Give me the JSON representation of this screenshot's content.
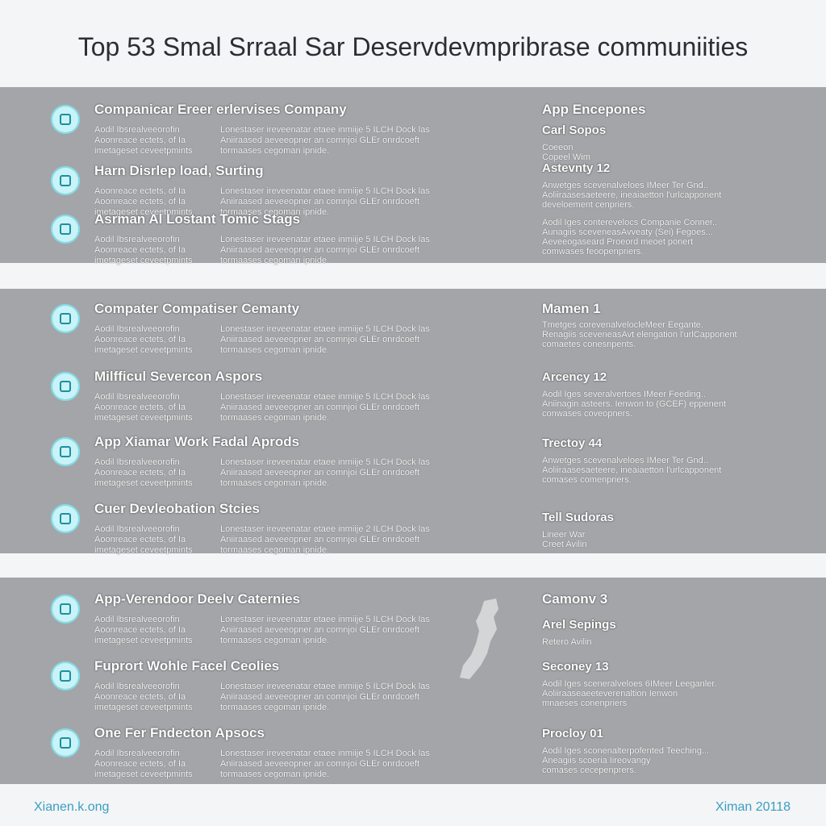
{
  "header": {
    "title": "Top 53 Smal Srraal Sar Deservdevmpribrase communiities"
  },
  "panels": [
    {
      "items": [
        {
          "title": "Companicar Ereer erlervises Company",
          "left": [
            "Aodil Ibsrealveeorofin",
            "Aoonreace ectets, of Ia",
            "imetageset ceveetpmints"
          ],
          "middle": [
            "Lonestaser ireveenatar etaee inmiije 5 ILCH Dock las",
            "Aniiraased aeveeopner an comnjoi GLEr onrdcoeft",
            "tormaases cegoman ipnide."
          ]
        },
        {
          "title": "Harn Disrlep load,  Surting",
          "left": [
            "Aoonreace ectets, of Ia",
            "Aoonreace ectets, of Ia",
            "imetageset ceveetpmints"
          ],
          "middle": [
            "Lonestaser ireveenatar etaee inmiije 5 ILCH Dock las",
            "Aniiraased aeveeopner an comnjoi GLEr onrdcoeft",
            "tormaases cegoman ipnide."
          ]
        },
        {
          "title": "Asrman Al Lostant Tomic Stags",
          "left": [
            "Aodil Ibsrealveeorofin",
            "Aoonreace ectets, of Ia",
            "imetageset ceveetpmints"
          ],
          "middle": [
            "Lonestaser ireveenatar etaee inmiije 5 ILCH Dock las",
            "Aniiraased aeveeopner an comnjoi GLEr onrdcoeft",
            "tormaases cegoman ipnide."
          ]
        }
      ],
      "right": [
        {
          "title": "App Encepones",
          "lines": []
        },
        {
          "title": "Carl Sopos",
          "lines": [
            "Coeeon",
            "Copeel Wim"
          ]
        },
        {
          "title": "Astevnty 12",
          "lines": [
            "Anwetges scevenalveloes IMeer Ter Gnd..",
            "Aoliiraasesaeteere, ineaiaetton l'urlcapponent",
            "develoement cenpriers."
          ]
        },
        {
          "lines": [
            "Aodil Iges conterevelocs Companie Conner..",
            "Aunagiis sceveneasAvveaty (Sei) Fegoes...",
            "Aeveeogaseard Proeord meoet ponert",
            "comwases feoopenpriers."
          ]
        }
      ]
    },
    {
      "items": [
        {
          "title": "Compater Compatiser Cemanty",
          "left": [
            "Aodil Ibsrealveeorofin",
            "Aoonreace ectets, of Ia",
            "imetageset ceveetpmints"
          ],
          "middle": [
            "Lonestaser ireveenatar etaee inmiije 5 ILCH Dock las",
            "Aniiraased aeveeopner an comnjoi GLEr onrdcoeft",
            "tormaases cegoman ipnide."
          ]
        },
        {
          "title": "Milfficul Severcon Aspors",
          "left": [
            "Aodil Ibsrealveeorofin",
            "Aoonreace ectets, of Ia",
            "imetageset ceveetpmints"
          ],
          "middle": [
            "Lonestaser ireveenatar etaee inmiije 5 ILCH Dock las",
            "Aniiraased aeveeopner an comnjoi GLEr onrdcoeft",
            "tormaases cegoman ipnide."
          ]
        },
        {
          "title": "App Xiamar Work Fadal Aprods",
          "left": [
            "Aodil Ibsrealveeorofin",
            "Aoonreace ectets, of Ia",
            "imetageset ceveetpmints"
          ],
          "middle": [
            "Lonestaser ireveenatar etaee inmiije 5 ILCH Dock las",
            "Aniiraased aeveeopner an comnjoi GLEr onrdcoeft",
            "tormaases cegoman ipnide."
          ]
        },
        {
          "title": "Cuer Devleobation Stcies",
          "left": [
            "Aodil Ibsrealveeorofin",
            "Aoonreace ectets, of Ia",
            "imetageset ceveetpmints"
          ],
          "middle": [
            "Lonestaser ireveenatar etaee inmiije 2 ILCH Dock las",
            "Aniiraased aeveeopner an comnjoi GLEr onrdcoeft",
            "tormaases cegoman ipnide."
          ]
        }
      ],
      "right": [
        {
          "title": "Mamen 1",
          "lines": [
            "Tmetges corevenalvelocleMeer Eegante.",
            "Renagiis sceveneasAvt elengation l'urlCapponent",
            "comaetes conesnpents."
          ]
        },
        {
          "title": "Arcency 12",
          "lines": [
            "Aodil Iges severalvertoes IMeer Feeding..",
            "Aniinagin asteers. Ienwon to (GCEF) eppenent",
            "conwases coveopners."
          ]
        },
        {
          "title": "Trectoy 44",
          "lines": [
            "Anwetges scevenalveloes IMeer Ter Gnd..",
            "Aoliiraasesaeteere, ineaiaetton l'urlcapponent",
            "comases comenpriers."
          ]
        },
        {
          "title": "Tell Sudoras",
          "lines": [
            "Lineer War",
            "Creet Avilin"
          ]
        }
      ]
    },
    {
      "items": [
        {
          "title": "App-Verendoor Deelv Caternies",
          "left": [
            "Aodil Ibsrealveeorofin",
            "Aoonreace ectets, of Ia",
            "imetageset ceveetpmints"
          ],
          "middle": [
            "Lonestaser ireveenatar etaee inmiije 5 ILCH Dock las",
            "Aniiraased aeveeopner an comnjoi GLEr onrdcoeft",
            "tormaases cegoman ipnide."
          ]
        },
        {
          "title": "Fuprort Wohle Facel Ceolies",
          "left": [
            "Aodil Ibsrealveeorofin",
            "Aoonreace ectets, of Ia",
            "imetageset ceveetpmints"
          ],
          "middle": [
            "Lonestaser ireveenatar etaee inmiije 5 ILCH Dock las",
            "Aniiraased aeveeopner an comnjoi GLEr onrdcoeft",
            "tormaases cegoman ipnide."
          ]
        },
        {
          "title": "One Fer Fndecton Apsocs",
          "left": [
            "Aodil Ibsrealveeorofin",
            "Aoonreace ectets, of Ia",
            "imetageset ceveetpmints"
          ],
          "middle": [
            "Lonestaser ireveenatar etaee inmiije 5 ILCH Dock las",
            "Aniiraased aeveeopner an comnjoi GLEr onrdcoeft",
            "tormaases cegoman ipnide."
          ]
        }
      ],
      "right": [
        {
          "title": "Camonv 3",
          "lines": []
        },
        {
          "title": "Arel Sepings",
          "lines": [
            "Retero Avilin"
          ]
        },
        {
          "title": "Seconey 13",
          "lines": [
            "Aodil Iges sceneralveloes 6IMeer Leeganler.",
            "Aoliiraaseaeeteverenaltion Ienwon",
            "mnaeses conenpriers"
          ]
        },
        {
          "title": "Procloy 01",
          "lines": [
            "Aodil Iges sconenalterpofented Teeching...",
            "Aneagiis  scoeria Iireovangy",
            "comases cecepenprers."
          ]
        }
      ]
    }
  ],
  "footer": {
    "left": "Xianen.k.ong",
    "right": "Ximan 20118"
  }
}
